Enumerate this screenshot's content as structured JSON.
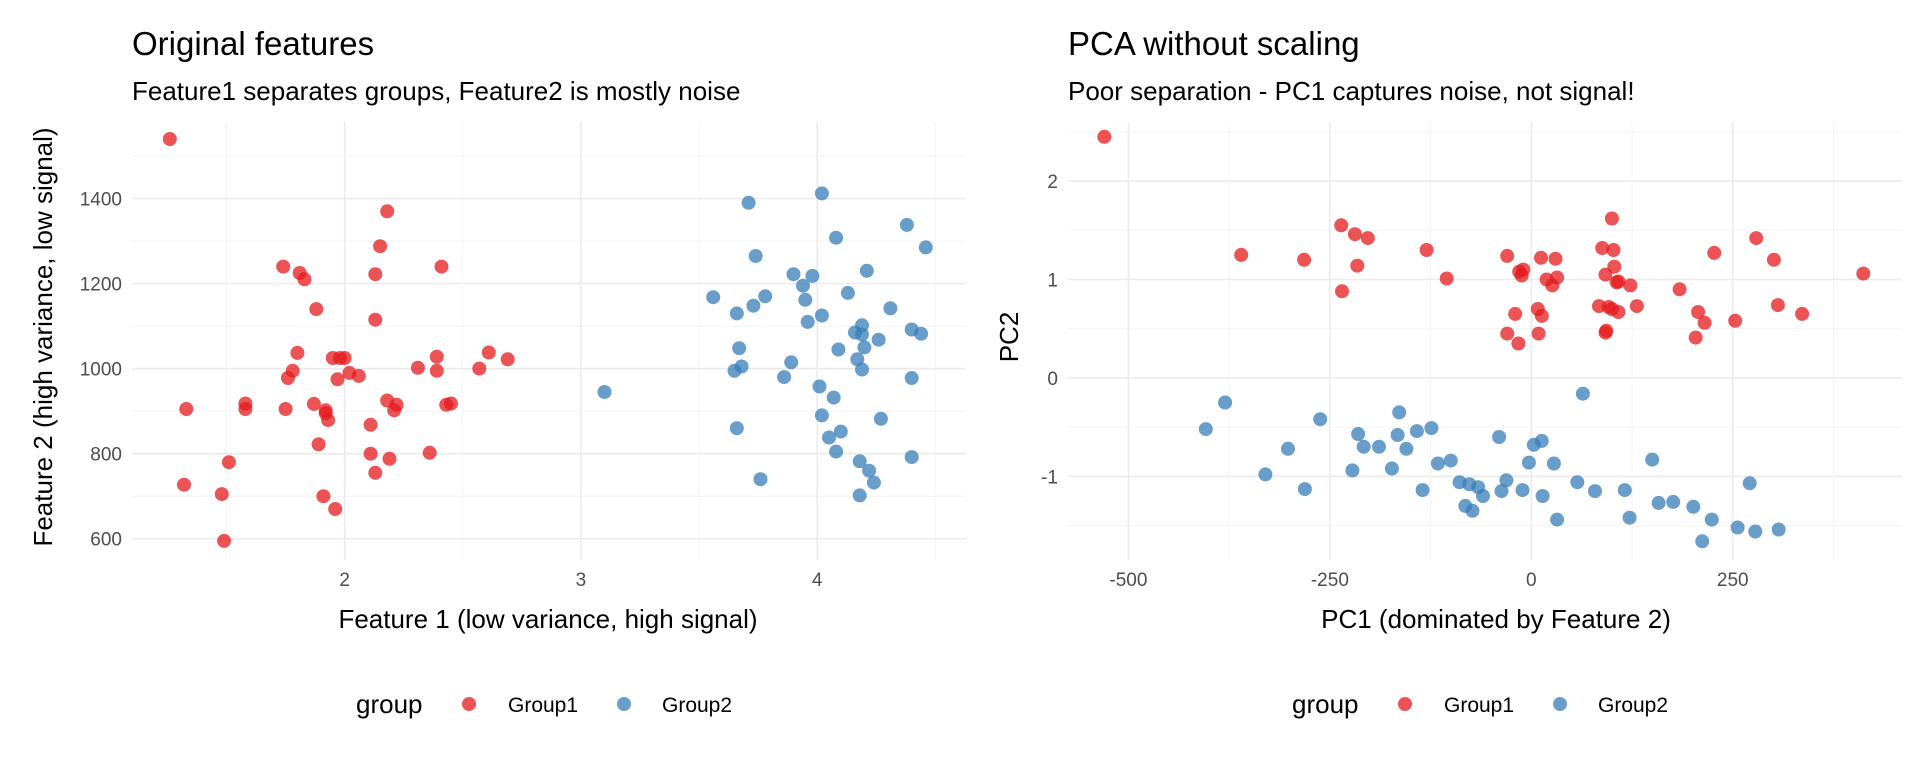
{
  "colors": {
    "Group1": "#E41A1C",
    "Group2": "#377EB8"
  },
  "chart_data": [
    {
      "type": "scatter",
      "title": "Original features",
      "subtitle": "Feature1 separates groups, Feature2 is mostly noise",
      "xlabel": "Feature 1 (low variance, high signal)",
      "ylabel": "Feature 2 (high variance, low signal)",
      "xlim": [
        1.1,
        4.63
      ],
      "ylim": [
        550,
        1580
      ],
      "xticks": [
        2,
        3,
        4
      ],
      "yticks": [
        600,
        800,
        1000,
        1200,
        1400
      ],
      "grid": true,
      "legend": {
        "title": "group",
        "position": "bottom",
        "items": [
          "Group1",
          "Group2"
        ]
      },
      "series": [
        {
          "name": "Group1",
          "points": [
            [
              1.26,
              1540
            ],
            [
              1.33,
              905
            ],
            [
              1.32,
              727
            ],
            [
              1.48,
              705
            ],
            [
              1.51,
              780
            ],
            [
              1.49,
              595
            ],
            [
              1.58,
              905
            ],
            [
              1.58,
              918
            ],
            [
              1.74,
              1240
            ],
            [
              1.75,
              905
            ],
            [
              1.76,
              978
            ],
            [
              1.78,
              995
            ],
            [
              1.8,
              1037
            ],
            [
              1.81,
              1225
            ],
            [
              1.83,
              1210
            ],
            [
              1.87,
              917
            ],
            [
              1.88,
              1140
            ],
            [
              1.89,
              822
            ],
            [
              1.91,
              700
            ],
            [
              1.92,
              895
            ],
            [
              1.92,
              902
            ],
            [
              1.93,
              879
            ],
            [
              1.95,
              1025
            ],
            [
              1.96,
              670
            ],
            [
              1.97,
              975
            ],
            [
              1.98,
              1025
            ],
            [
              2.0,
              1025
            ],
            [
              2.02,
              990
            ],
            [
              2.06,
              983
            ],
            [
              2.11,
              868
            ],
            [
              2.11,
              800
            ],
            [
              2.13,
              1222
            ],
            [
              2.13,
              1115
            ],
            [
              2.13,
              755
            ],
            [
              2.15,
              1288
            ],
            [
              2.18,
              1370
            ],
            [
              2.18,
              925
            ],
            [
              2.19,
              788
            ],
            [
              2.21,
              902
            ],
            [
              2.22,
              915
            ],
            [
              2.31,
              1002
            ],
            [
              2.36,
              802
            ],
            [
              2.39,
              1028
            ],
            [
              2.39,
              995
            ],
            [
              2.41,
              1240
            ],
            [
              2.43,
              915
            ],
            [
              2.45,
              918
            ],
            [
              2.57,
              1000
            ],
            [
              2.61,
              1038
            ],
            [
              2.69,
              1022
            ]
          ]
        },
        {
          "name": "Group2",
          "points": [
            [
              3.1,
              945
            ],
            [
              3.56,
              1168
            ],
            [
              3.65,
              995
            ],
            [
              3.66,
              1130
            ],
            [
              3.66,
              860
            ],
            [
              3.67,
              1048
            ],
            [
              3.68,
              1005
            ],
            [
              3.71,
              1390
            ],
            [
              3.73,
              1148
            ],
            [
              3.74,
              1265
            ],
            [
              3.76,
              740
            ],
            [
              3.78,
              1170
            ],
            [
              3.86,
              980
            ],
            [
              3.89,
              1015
            ],
            [
              3.9,
              1222
            ],
            [
              3.94,
              1195
            ],
            [
              3.95,
              1162
            ],
            [
              3.96,
              1110
            ],
            [
              3.98,
              1218
            ],
            [
              4.01,
              958
            ],
            [
              4.02,
              890
            ],
            [
              4.02,
              1125
            ],
            [
              4.02,
              1412
            ],
            [
              4.05,
              838
            ],
            [
              4.07,
              932
            ],
            [
              4.08,
              1308
            ],
            [
              4.08,
              805
            ],
            [
              4.09,
              1045
            ],
            [
              4.1,
              852
            ],
            [
              4.13,
              1178
            ],
            [
              4.16,
              1085
            ],
            [
              4.17,
              1022
            ],
            [
              4.18,
              782
            ],
            [
              4.18,
              702
            ],
            [
              4.19,
              1102
            ],
            [
              4.19,
              1080
            ],
            [
              4.19,
              998
            ],
            [
              4.2,
              1050
            ],
            [
              4.21,
              1230
            ],
            [
              4.22,
              760
            ],
            [
              4.24,
              732
            ],
            [
              4.26,
              1068
            ],
            [
              4.27,
              882
            ],
            [
              4.31,
              1142
            ],
            [
              4.38,
              1338
            ],
            [
              4.4,
              1092
            ],
            [
              4.4,
              978
            ],
            [
              4.4,
              792
            ],
            [
              4.44,
              1082
            ],
            [
              4.46,
              1285
            ]
          ]
        }
      ]
    },
    {
      "type": "scatter",
      "title": "PCA without scaling",
      "subtitle": "Poor separation - PC1 captures noise, not signal!",
      "xlabel": "PC1 (dominated by Feature 2)",
      "ylabel": "PC2",
      "xlim": [
        -575,
        460
      ],
      "ylim": [
        -1.85,
        2.6
      ],
      "xticks": [
        -500,
        -250,
        0,
        250
      ],
      "yticks": [
        -1,
        0,
        1,
        2
      ],
      "grid": true,
      "legend": {
        "title": "group",
        "position": "bottom",
        "items": [
          "Group1",
          "Group2"
        ]
      },
      "series": [
        {
          "name": "Group1",
          "points": [
            [
              -530,
              2.45
            ],
            [
              -360,
              1.25
            ],
            [
              -282,
              1.2
            ],
            [
              -236,
              1.55
            ],
            [
              -235,
              0.88
            ],
            [
              -219,
              1.46
            ],
            [
              -216,
              1.14
            ],
            [
              -203,
              1.42
            ],
            [
              -130,
              1.3
            ],
            [
              -105,
              1.01
            ],
            [
              -30,
              1.24
            ],
            [
              -30,
              0.45
            ],
            [
              -20,
              0.65
            ],
            [
              -16,
              0.35
            ],
            [
              -15,
              1.08
            ],
            [
              -12,
              1.04
            ],
            [
              -10,
              1.1
            ],
            [
              8,
              0.7
            ],
            [
              9,
              0.45
            ],
            [
              12,
              1.22
            ],
            [
              13,
              0.63
            ],
            [
              19,
              1.0
            ],
            [
              26,
              0.94
            ],
            [
              30,
              1.21
            ],
            [
              32,
              1.02
            ],
            [
              84,
              0.73
            ],
            [
              88,
              1.32
            ],
            [
              92,
              0.46
            ],
            [
              92,
              1.05
            ],
            [
              93,
              0.48
            ],
            [
              96,
              0.72
            ],
            [
              100,
              1.62
            ],
            [
              100,
              0.7
            ],
            [
              102,
              1.3
            ],
            [
              103,
              1.13
            ],
            [
              106,
              0.97
            ],
            [
              108,
              0.98
            ],
            [
              108,
              0.67
            ],
            [
              123,
              0.94
            ],
            [
              131,
              0.73
            ],
            [
              184,
              0.9
            ],
            [
              204,
              0.41
            ],
            [
              207,
              0.67
            ],
            [
              215,
              0.56
            ],
            [
              227,
              1.27
            ],
            [
              253,
              0.58
            ],
            [
              279,
              1.42
            ],
            [
              301,
              1.2
            ],
            [
              306,
              0.74
            ],
            [
              336,
              0.65
            ],
            [
              412,
              1.06
            ]
          ]
        },
        {
          "name": "Group2",
          "points": [
            [
              -404,
              -0.52
            ],
            [
              -380,
              -0.25
            ],
            [
              -330,
              -0.98
            ],
            [
              -302,
              -0.72
            ],
            [
              -281,
              -1.13
            ],
            [
              -262,
              -0.42
            ],
            [
              -222,
              -0.94
            ],
            [
              -215,
              -0.57
            ],
            [
              -208,
              -0.7
            ],
            [
              -189,
              -0.7
            ],
            [
              -173,
              -0.92
            ],
            [
              -166,
              -0.58
            ],
            [
              -164,
              -0.35
            ],
            [
              -155,
              -0.72
            ],
            [
              -142,
              -0.54
            ],
            [
              -135,
              -1.14
            ],
            [
              -124,
              -0.51
            ],
            [
              -116,
              -0.87
            ],
            [
              -100,
              -0.84
            ],
            [
              -89,
              -1.06
            ],
            [
              -82,
              -1.3
            ],
            [
              -77,
              -1.08
            ],
            [
              -73,
              -1.35
            ],
            [
              -66,
              -1.11
            ],
            [
              -60,
              -1.2
            ],
            [
              -40,
              -0.6
            ],
            [
              -37,
              -1.15
            ],
            [
              -31,
              -1.04
            ],
            [
              -11,
              -1.14
            ],
            [
              -3,
              -0.86
            ],
            [
              3,
              -0.68
            ],
            [
              13,
              -0.64
            ],
            [
              14,
              -1.2
            ],
            [
              28,
              -0.87
            ],
            [
              32,
              -1.44
            ],
            [
              57,
              -1.06
            ],
            [
              64,
              -0.16
            ],
            [
              79,
              -1.15
            ],
            [
              116,
              -1.14
            ],
            [
              122,
              -1.42
            ],
            [
              150,
              -0.83
            ],
            [
              158,
              -1.27
            ],
            [
              176,
              -1.26
            ],
            [
              201,
              -1.31
            ],
            [
              212,
              -1.66
            ],
            [
              224,
              -1.44
            ],
            [
              256,
              -1.52
            ],
            [
              271,
              -1.07
            ],
            [
              278,
              -1.56
            ],
            [
              307,
              -1.54
            ]
          ]
        }
      ]
    }
  ]
}
